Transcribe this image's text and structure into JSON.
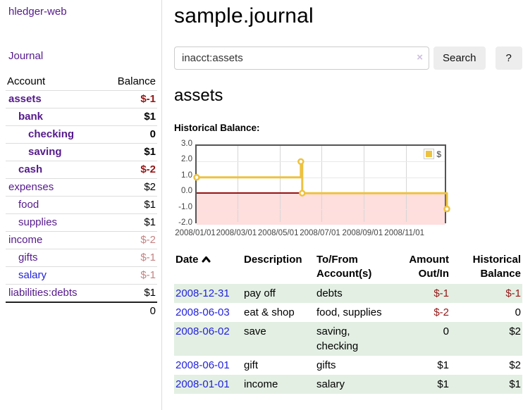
{
  "app": {
    "title": "hledger-web"
  },
  "sidebar": {
    "journal_link": "Journal",
    "header": {
      "account": "Account",
      "balance": "Balance"
    },
    "accounts": [
      {
        "label": "assets",
        "indent": 0,
        "bold": true,
        "balance": "$-1",
        "balance_negative": true
      },
      {
        "label": "bank",
        "indent": 1,
        "bold": true,
        "balance": "$1",
        "balance_negative": false
      },
      {
        "label": "checking",
        "indent": 2,
        "bold": true,
        "balance": "0",
        "balance_negative": false
      },
      {
        "label": "saving",
        "indent": 2,
        "bold": true,
        "balance": "$1",
        "balance_negative": false
      },
      {
        "label": "cash",
        "indent": 1,
        "bold": true,
        "balance": "$-2",
        "balance_negative": true
      },
      {
        "label": "expenses",
        "indent": 0,
        "bold": false,
        "balance": "$2",
        "balance_negative": false
      },
      {
        "label": "food",
        "indent": 1,
        "bold": false,
        "balance": "$1",
        "balance_negative": false
      },
      {
        "label": "supplies",
        "indent": 1,
        "bold": false,
        "balance": "$1",
        "balance_negative": false
      },
      {
        "label": "income",
        "indent": 0,
        "bold": false,
        "balance": "$-2",
        "balance_negative": true
      },
      {
        "label": "gifts",
        "indent": 1,
        "bold": false,
        "balance": "$-1",
        "balance_negative": true
      },
      {
        "label": "salary",
        "indent": 1,
        "bold": false,
        "link_color": "blue",
        "balance": "$-1",
        "balance_negative": true
      },
      {
        "label": "liabilities:debts",
        "indent": 0,
        "bold": false,
        "balance": "$1",
        "balance_negative": false
      }
    ],
    "total": "0"
  },
  "main": {
    "title": "sample.journal",
    "search": {
      "value": "inacct:assets",
      "clear_icon": "×",
      "button": "Search",
      "help_button": "?"
    },
    "account_title": "assets",
    "chart_label": "Historical Balance:"
  },
  "chart_data": {
    "type": "line",
    "title": "Historical Balance:",
    "step": true,
    "x_min": "2008/01/01",
    "x_max": "2009/01/01",
    "x_ticks": [
      "2008/01/01",
      "2008/03/01",
      "2008/05/01",
      "2008/07/01",
      "2008/09/01",
      "2008/11/01"
    ],
    "y_ticks": [
      "3.0",
      "2.0",
      "1.0",
      "0.0",
      "-1.0",
      "-2.0"
    ],
    "ylim": [
      -2,
      3
    ],
    "series": [
      {
        "name": "$",
        "color": "#edc240",
        "points": [
          [
            "2008/01/01",
            1
          ],
          [
            "2008/06/01",
            2
          ],
          [
            "2008/06/03",
            0
          ],
          [
            "2008/12/31",
            -1
          ]
        ]
      }
    ],
    "negative_region_color": "#ffdede",
    "zero_line_color": "#991111",
    "legend": {
      "label": "$",
      "position": "top-right"
    },
    "grid": true
  },
  "table": {
    "headers": [
      "Date",
      "Description",
      "To/From Account(s)",
      "Amount Out/In",
      "Historical Balance"
    ],
    "sort_icon": "chevron-up",
    "rows": [
      {
        "date": "2008-12-31",
        "description": "pay off",
        "accounts": "debts",
        "amount": "$-1",
        "amount_negative": true,
        "balance": "$-1",
        "balance_negative": true
      },
      {
        "date": "2008-06-03",
        "description": "eat & shop",
        "accounts": "food, supplies",
        "amount": "$-2",
        "amount_negative": true,
        "balance": "0",
        "balance_negative": false
      },
      {
        "date": "2008-06-02",
        "description": "save",
        "accounts": "saving, checking",
        "amount": "0",
        "amount_negative": false,
        "balance": "$2",
        "balance_negative": false
      },
      {
        "date": "2008-06-01",
        "description": "gift",
        "accounts": "gifts",
        "amount": "$1",
        "amount_negative": false,
        "balance": "$2",
        "balance_negative": false
      },
      {
        "date": "2008-01-01",
        "description": "income",
        "accounts": "salary",
        "amount": "$1",
        "amount_negative": false,
        "balance": "$1",
        "balance_negative": false
      }
    ]
  },
  "colors": {
    "accent_purple": "#551a8b",
    "link_blue": "#2222dd",
    "negative_strong": "#941616",
    "negative_soft": "#c48383",
    "row_green": "#e3efe3",
    "chart_line": "#edc240",
    "negative_region": "#ffdede",
    "zero_line": "#991111"
  }
}
